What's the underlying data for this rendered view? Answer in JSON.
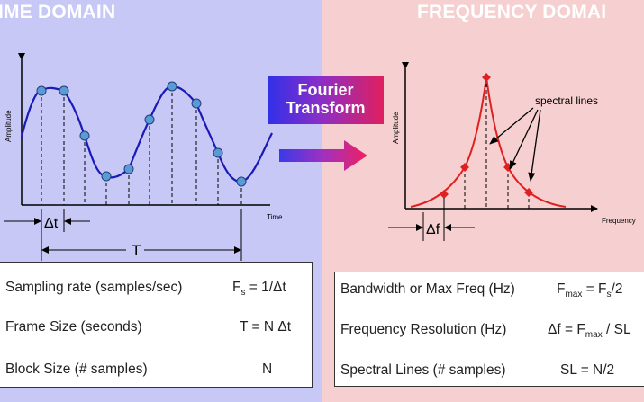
{
  "time_domain": {
    "title": "IME DOMAIN",
    "y_axis_label": "Amplitude",
    "x_axis_label": "Time",
    "delta_t_label": "Δt",
    "period_label": "T"
  },
  "frequency_domain": {
    "title": "FREQUENCY DOMAI",
    "y_axis_label": "Amplitude",
    "x_axis_label": "Frequency",
    "delta_f_label": "Δf",
    "annotation": "spectral lines"
  },
  "transform": {
    "line1": "Fourier",
    "line2": "Transform"
  },
  "left_table": [
    {
      "label": "Sampling rate (samples/sec)",
      "value": "Fs = 1/Δt",
      "v_main": "F",
      "v_sub": "s",
      "v_rest": " = 1/Δt"
    },
    {
      "label": "Frame Size (seconds)",
      "value": "T = N Δt"
    },
    {
      "label": "Block Size (# samples)",
      "value": "N"
    }
  ],
  "right_table": [
    {
      "label": "Bandwidth or Max Freq (Hz)",
      "value": "Fmax = Fs/2",
      "v_a": "F",
      "v_a_sub": "max",
      "v_b": " = F",
      "v_b_sub": "s",
      "v_c": "/2"
    },
    {
      "label": "Frequency Resolution (Hz)",
      "value": "Δf = Fmax / SL",
      "v_a": "Δf = F",
      "v_a_sub": "max",
      "v_b": " / SL"
    },
    {
      "label": "Spectral Lines (# samples)",
      "value": "SL = N/2"
    }
  ],
  "colors": {
    "left_bg": "#c8c8f7",
    "right_bg": "#f6d0d0",
    "sine": "#1a1ab8",
    "sample_dot": "#5b9bd5",
    "spectrum": "#e02020"
  }
}
